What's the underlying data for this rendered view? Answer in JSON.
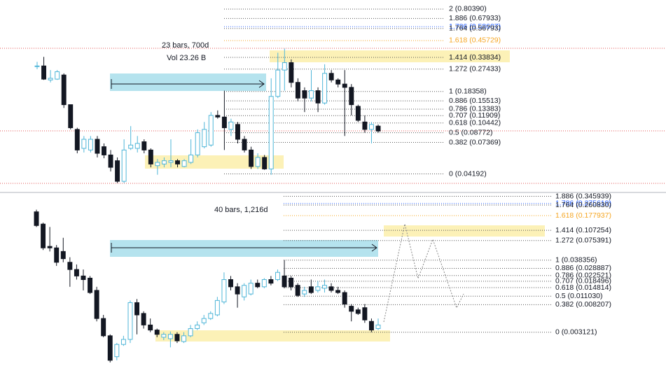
{
  "chart_data": [
    {
      "type": "candlestick",
      "ylim": [
        -0.14,
        2.11
      ],
      "up_color": "#4fb6d8",
      "down_color": "#131722",
      "annotations": [
        "23 bars, 700d",
        "Vol 23.26 B"
      ],
      "levels": [
        {
          "value": 2,
          "label": "2 (0.80390)"
        },
        {
          "value": 1.886,
          "label": "1.886 (0.67933)"
        },
        {
          "value": 1.786,
          "label": "1.786 (0.58607)",
          "color": "#2962ff"
        },
        {
          "value": 1.764,
          "label": "1.764 (0.56793)"
        },
        {
          "value": 1.618,
          "label": "1.618 (0.45729)",
          "color": "#f5a623"
        },
        {
          "value": 1.414,
          "label": "1.414 (0.33834)",
          "highlight": true
        },
        {
          "value": 1.272,
          "label": "1.272 (0.27433)"
        },
        {
          "value": 1,
          "label": "1 (0.18358)"
        },
        {
          "value": 0.886,
          "label": "0.886 (0.15513)"
        },
        {
          "value": 0.786,
          "label": "0.786 (0.13383)"
        },
        {
          "value": 0.707,
          "label": "0.707 (0.11909)"
        },
        {
          "value": 0.618,
          "label": "0.618 (0.10442)"
        },
        {
          "value": 0.5,
          "label": "0.5 (0.08772)"
        },
        {
          "value": 0.382,
          "label": "0.382 (0.07369)"
        },
        {
          "value": 0,
          "label": "0 (0.04192)"
        }
      ],
      "open": [
        1.31,
        1.31,
        1.14,
        1.15,
        1.2,
        0.84,
        0.54,
        0.31,
        0.29,
        0.42,
        0.33,
        0.23,
        0.16,
        -0.09,
        0.31,
        0.31,
        0.39,
        0.29,
        0.1,
        0.12,
        0.14,
        0.16,
        0.09,
        0.14,
        0.23,
        0.33,
        0.35,
        0.71,
        0.69,
        0.54,
        0.6,
        0.42,
        0.29,
        0.09,
        0.2,
        0.06,
        0.94,
        1.26,
        1.35,
        1.11,
        1.01,
        0.92,
        1.01,
        0.86,
        1.22,
        1.14,
        1.09,
        1.05,
        0.82,
        0.63,
        0.54,
        0.58
      ],
      "high": [
        1.36,
        1.42,
        1.26,
        1.26,
        1.22,
        0.84,
        0.56,
        0.46,
        0.46,
        0.46,
        0.37,
        0.29,
        0.2,
        0.42,
        0.58,
        0.46,
        0.42,
        0.31,
        0.18,
        0.2,
        0.42,
        0.18,
        0.18,
        0.42,
        0.54,
        0.63,
        0.75,
        0.77,
        1.01,
        0.67,
        0.63,
        0.46,
        0.33,
        0.25,
        0.23,
        1.16,
        1.47,
        1.52,
        1.39,
        1.16,
        1.05,
        1.26,
        1.05,
        1.33,
        1.26,
        1.16,
        1.26,
        1.09,
        0.84,
        0.71,
        0.63,
        0.6
      ],
      "low": [
        1.27,
        1.14,
        1.11,
        1.14,
        0.8,
        0.54,
        0.25,
        0.26,
        0.26,
        0.2,
        0.19,
        0.03,
        -0.11,
        -0.11,
        0.29,
        0.26,
        0.25,
        0.08,
        -0.01,
        0.08,
        0.08,
        0.08,
        0.08,
        0.12,
        0.2,
        0.31,
        0.33,
        0.67,
        0.29,
        0.46,
        0.37,
        0.26,
        0.06,
        0.06,
        0.05,
        -0.01,
        0.92,
        1.01,
        1.05,
        0.88,
        0.75,
        0.88,
        0.75,
        0.84,
        1.11,
        1.05,
        0.46,
        0.71,
        0.63,
        0.5,
        0.37,
        0.5
      ],
      "close": [
        1.31,
        1.15,
        1.16,
        1.24,
        0.84,
        0.56,
        0.29,
        0.42,
        0.42,
        0.25,
        0.23,
        0.08,
        -0.09,
        0.29,
        0.35,
        0.37,
        0.29,
        0.12,
        0.14,
        0.16,
        0.16,
        0.12,
        0.16,
        0.23,
        0.5,
        0.54,
        0.71,
        0.69,
        0.56,
        0.63,
        0.42,
        0.29,
        0.09,
        0.2,
        0.06,
        0.94,
        1.26,
        1.35,
        1.11,
        0.92,
        0.92,
        1.01,
        0.86,
        1.22,
        1.14,
        1.09,
        1.05,
        0.84,
        0.65,
        0.54,
        0.6,
        0.52
      ]
    },
    {
      "type": "candlestick",
      "ylim": [
        -0.44,
        1.91
      ],
      "up_color": "#4fb6d8",
      "down_color": "#131722",
      "annotations": [
        "40 bars, 1,216d"
      ],
      "levels": [
        {
          "value": 1.886,
          "label": "1.886 (0.345939)"
        },
        {
          "value": 1.786,
          "label": "1.786 (0.275619)",
          "color": "#2962ff"
        },
        {
          "value": 1.764,
          "label": "1.764 (0.260830)"
        },
        {
          "value": 1.618,
          "label": "1.618 (0.177937)",
          "color": "#f5a623"
        },
        {
          "value": 1.414,
          "label": "1.414 (0.107254)",
          "highlight": true
        },
        {
          "value": 1.272,
          "label": "1.272 (0.075391)"
        },
        {
          "value": 1,
          "label": "1 (0.038356)"
        },
        {
          "value": 0.886,
          "label": "0.886 (0.028887)"
        },
        {
          "value": 0.786,
          "label": "0.786 (0.022521)"
        },
        {
          "value": 0.707,
          "label": "0.707 (0.018496)"
        },
        {
          "value": 0.618,
          "label": "0.618 (0.014814)"
        },
        {
          "value": 0.5,
          "label": "0.5 (0.011030)"
        },
        {
          "value": 0.382,
          "label": "0.382 (0.008207)"
        },
        {
          "value": 0,
          "label": "0 (0.003121)"
        }
      ],
      "open": [
        1.67,
        1.5,
        1.19,
        1.17,
        1.12,
        0.97,
        0.87,
        0.78,
        0.75,
        0.58,
        0.19,
        -0.05,
        -0.34,
        -0.17,
        -0.1,
        0.41,
        0.26,
        0.1,
        0.03,
        -0.07,
        -0.09,
        -0.03,
        -0.13,
        -0.05,
        0.05,
        0.13,
        0.19,
        0.24,
        0.42,
        0.73,
        0.63,
        0.49,
        0.53,
        0.68,
        0.63,
        0.73,
        0.73,
        0.78,
        0.75,
        0.65,
        0.53,
        0.63,
        0.58,
        0.61,
        0.63,
        0.58,
        0.55,
        0.36,
        0.31,
        0.34,
        0.15,
        0.05
      ],
      "high": [
        1.7,
        1.52,
        1.46,
        1.21,
        1.31,
        1.04,
        0.94,
        0.87,
        0.78,
        0.63,
        0.24,
        -0.03,
        -0.15,
        -0.05,
        0.44,
        0.46,
        0.29,
        0.19,
        0.05,
        0.0,
        0.01,
        0.0,
        0.0,
        0.1,
        0.15,
        0.24,
        0.29,
        0.49,
        0.83,
        0.78,
        0.68,
        0.68,
        0.73,
        0.73,
        0.75,
        0.78,
        0.87,
        1.0,
        0.78,
        0.68,
        0.63,
        0.73,
        0.71,
        0.73,
        0.68,
        0.63,
        0.58,
        0.39,
        0.34,
        0.39,
        0.19,
        0.19
      ],
      "low": [
        1.46,
        1.14,
        1.12,
        0.92,
        0.97,
        0.63,
        0.73,
        0.58,
        0.53,
        0.15,
        -0.07,
        -0.42,
        -0.39,
        -0.19,
        -0.15,
        -0.03,
        0.05,
        0.0,
        -0.07,
        -0.11,
        -0.21,
        -0.15,
        -0.15,
        -0.07,
        0.03,
        0.1,
        0.17,
        0.22,
        0.39,
        0.58,
        0.34,
        0.44,
        0.51,
        0.61,
        0.61,
        0.65,
        0.71,
        0.61,
        0.58,
        0.49,
        0.49,
        0.53,
        0.55,
        0.55,
        0.55,
        0.53,
        0.34,
        0.15,
        0.24,
        0.13,
        0.0,
        0.03
      ],
      "close": [
        1.48,
        1.17,
        1.17,
        0.97,
        1.02,
        0.87,
        0.78,
        0.73,
        0.55,
        0.19,
        -0.05,
        -0.39,
        -0.17,
        -0.1,
        0.41,
        0.24,
        0.1,
        0.03,
        -0.03,
        -0.03,
        -0.03,
        -0.12,
        -0.05,
        0.05,
        0.1,
        0.19,
        0.26,
        0.44,
        0.73,
        0.63,
        0.53,
        0.65,
        0.68,
        0.63,
        0.73,
        0.68,
        0.83,
        0.63,
        0.63,
        0.51,
        0.58,
        0.55,
        0.63,
        0.65,
        0.58,
        0.55,
        0.39,
        0.29,
        0.26,
        0.17,
        0.03,
        0.1
      ]
    }
  ]
}
